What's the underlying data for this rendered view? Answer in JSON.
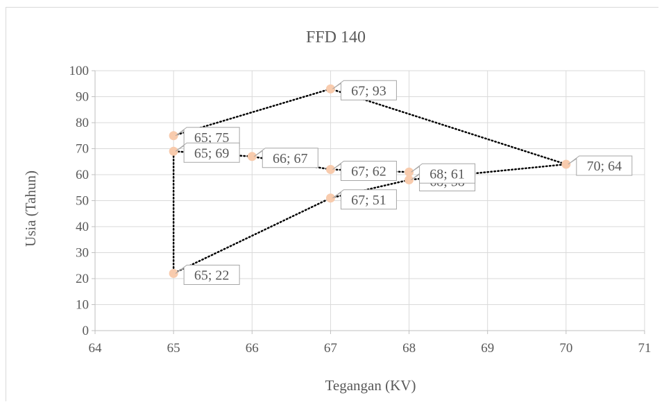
{
  "chart_data": {
    "type": "scatter",
    "title": "FFD 140",
    "xlabel": "Tegangan (KV)",
    "ylabel": "Usia (Tahun)",
    "xlim": [
      64,
      71
    ],
    "ylim": [
      0,
      100
    ],
    "x_ticks": [
      "64",
      "65",
      "66",
      "67",
      "68",
      "69",
      "70",
      "71"
    ],
    "y_ticks": [
      "0",
      "10",
      "20",
      "30",
      "40",
      "50",
      "60",
      "70",
      "80",
      "90",
      "100"
    ],
    "grid": true,
    "legend": "none",
    "marker_color": "#f8cbad",
    "line_style": "dotted",
    "line_color": "#000000",
    "points": [
      {
        "x": 65,
        "y": 75,
        "label": "65; 75"
      },
      {
        "x": 67,
        "y": 93,
        "label": "67; 93"
      },
      {
        "x": 70,
        "y": 64,
        "label": "70; 64"
      },
      {
        "x": 68,
        "y": 58,
        "label": "68; 58"
      },
      {
        "x": 67,
        "y": 51,
        "label": "67; 51"
      },
      {
        "x": 65,
        "y": 22,
        "label": "65; 22"
      },
      {
        "x": 65,
        "y": 69,
        "label": "65; 69"
      },
      {
        "x": 66,
        "y": 67,
        "label": "66; 67"
      },
      {
        "x": 67,
        "y": 62,
        "label": "67; 62"
      },
      {
        "x": 68,
        "y": 61,
        "label": "68; 61"
      }
    ]
  }
}
